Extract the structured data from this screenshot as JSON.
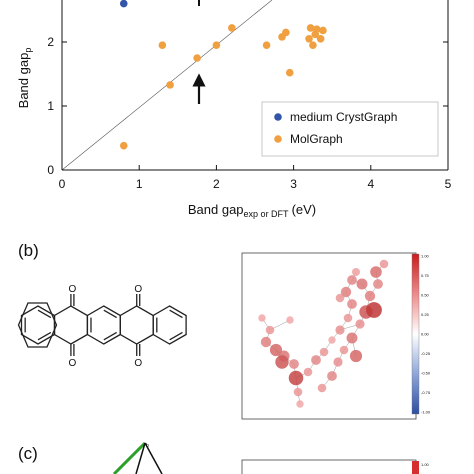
{
  "chart_data": {
    "type": "scatter",
    "xlabel": "Band gap",
    "xlabel_sub": "exp or DFT",
    "xlabel_unit": "(eV)",
    "ylabel_visible": "Band gap",
    "ylabel_sub_visible": "p",
    "xlim": [
      0,
      5
    ],
    "ylim_visible": [
      0,
      2.9
    ],
    "x_ticks": [
      "0",
      "1",
      "2",
      "3",
      "4",
      "5"
    ],
    "y_ticks": [
      "0",
      "1",
      "2"
    ],
    "grid": false,
    "legend_position": "lower-right",
    "reference_line": "y = x",
    "arrow_annotation_x": 1.78,
    "series": [
      {
        "name": "medium CrystGraph",
        "color": "#3355a8",
        "points": [
          [
            0.8,
            2.6
          ]
        ]
      },
      {
        "name": "MolGraph",
        "color": "#f0a040",
        "points": [
          [
            0.8,
            0.38
          ],
          [
            1.3,
            1.95
          ],
          [
            1.4,
            1.33
          ],
          [
            1.75,
            1.75
          ],
          [
            2.0,
            1.95
          ],
          [
            2.2,
            2.22
          ],
          [
            2.65,
            1.95
          ],
          [
            2.85,
            2.08
          ],
          [
            2.9,
            2.15
          ],
          [
            2.95,
            1.52
          ],
          [
            3.2,
            2.05
          ],
          [
            3.22,
            2.22
          ],
          [
            3.25,
            1.95
          ],
          [
            3.28,
            2.12
          ],
          [
            3.3,
            2.2
          ],
          [
            3.35,
            2.05
          ],
          [
            3.38,
            2.18
          ]
        ]
      }
    ]
  },
  "panels": {
    "b_label": "(b)",
    "c_label": "(c)"
  },
  "colorbar": {
    "b_ticks": [
      "1.00",
      "0.75",
      "0.50",
      "0.25",
      "0.00",
      "-0.25",
      "-0.50",
      "-0.75",
      "-1.00"
    ],
    "c_top_tick": "1.00"
  },
  "colors": {
    "positive": "#d62f2f",
    "negative": "#2c4ea3",
    "molecule": "#222222",
    "graph_edge": "#888888"
  }
}
